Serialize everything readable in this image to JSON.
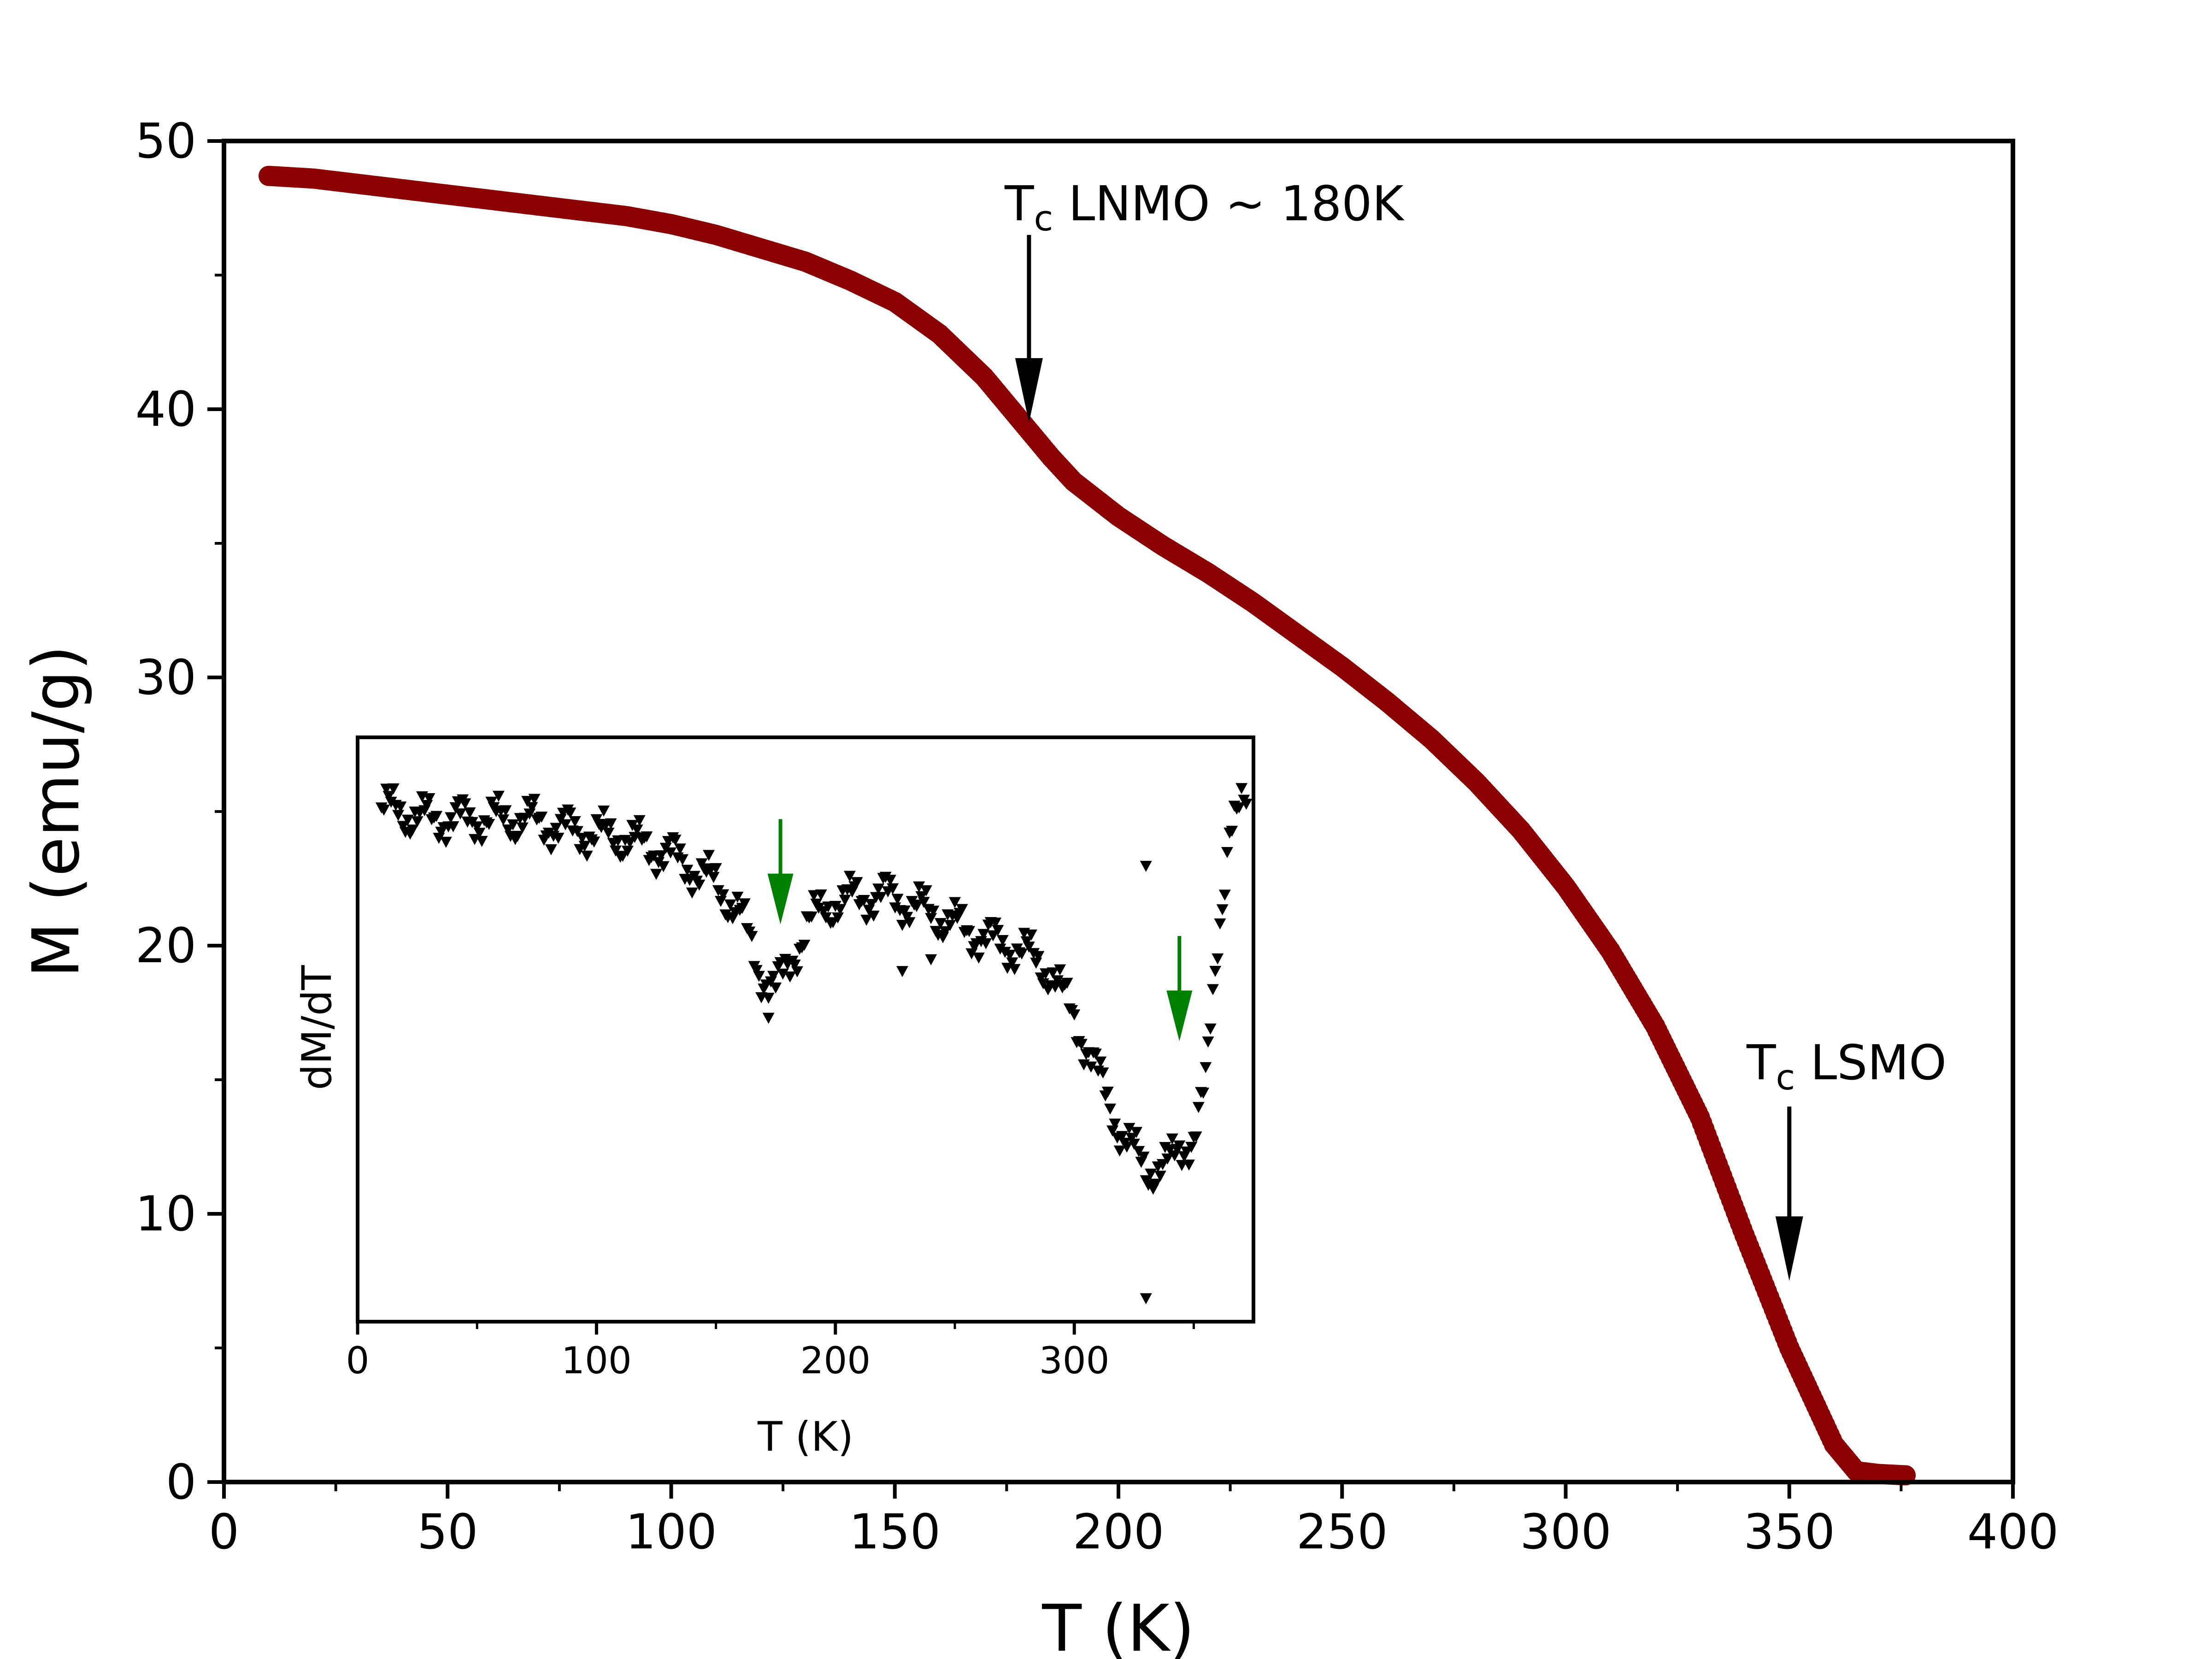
{
  "chart_data": {
    "main": {
      "type": "scatter",
      "xlabel": "T (K)",
      "ylabel": "M (emu/g)",
      "xlim": [
        0,
        400
      ],
      "ylim": [
        0,
        50
      ],
      "xticks": [
        "0",
        "50",
        "100",
        "150",
        "200",
        "250",
        "300",
        "350",
        "400"
      ],
      "yticks": [
        "0",
        "10",
        "20",
        "30",
        "40",
        "50"
      ],
      "marker_color": "#8b0000",
      "curve": [
        [
          10,
          48.7
        ],
        [
          20,
          48.6
        ],
        [
          30,
          48.4
        ],
        [
          40,
          48.2
        ],
        [
          50,
          48.0
        ],
        [
          60,
          47.8
        ],
        [
          70,
          47.6
        ],
        [
          80,
          47.4
        ],
        [
          90,
          47.2
        ],
        [
          100,
          46.9
        ],
        [
          110,
          46.5
        ],
        [
          120,
          46.0
        ],
        [
          130,
          45.5
        ],
        [
          140,
          44.8
        ],
        [
          150,
          44.0
        ],
        [
          160,
          42.8
        ],
        [
          170,
          41.2
        ],
        [
          175,
          40.2
        ],
        [
          180,
          39.2
        ],
        [
          185,
          38.2
        ],
        [
          190,
          37.3
        ],
        [
          200,
          36.0
        ],
        [
          210,
          34.9
        ],
        [
          220,
          33.9
        ],
        [
          230,
          32.8
        ],
        [
          240,
          31.6
        ],
        [
          250,
          30.4
        ],
        [
          260,
          29.1
        ],
        [
          270,
          27.7
        ],
        [
          280,
          26.1
        ],
        [
          290,
          24.3
        ],
        [
          300,
          22.2
        ],
        [
          310,
          19.8
        ],
        [
          320,
          17.0
        ],
        [
          330,
          13.6
        ],
        [
          340,
          9.2
        ],
        [
          350,
          5.0
        ],
        [
          355,
          3.2
        ],
        [
          360,
          1.4
        ],
        [
          365,
          0.4
        ],
        [
          370,
          0.3
        ],
        [
          376,
          0.25
        ]
      ],
      "annotations": [
        {
          "main": "T",
          "sub": "c",
          "rest": " LNMO ~ 180K",
          "arrow_x": 180,
          "arrow_y_from": 46.5,
          "arrow_y_to": 39.5
        },
        {
          "main": "T",
          "sub": "c",
          "rest": " LSMO",
          "arrow_x": 350,
          "arrow_y_from": 14.0,
          "arrow_y_to": 7.5
        }
      ]
    },
    "inset": {
      "type": "scatter",
      "xlabel": "T (K)",
      "ylabel": "dM/dT",
      "xlim": [
        0,
        375
      ],
      "ylim": [
        0,
        100
      ],
      "xticks": [
        "0",
        "100",
        "200",
        "300"
      ],
      "marker_color": "#000000",
      "arrow_color": "#008000",
      "curve": [
        [
          10,
          88
        ],
        [
          30,
          86
        ],
        [
          50,
          86
        ],
        [
          70,
          86
        ],
        [
          90,
          84
        ],
        [
          110,
          83
        ],
        [
          130,
          80
        ],
        [
          150,
          75
        ],
        [
          160,
          70
        ],
        [
          168,
          60
        ],
        [
          175,
          57
        ],
        [
          180,
          60
        ],
        [
          188,
          68
        ],
        [
          200,
          72
        ],
        [
          220,
          73
        ],
        [
          240,
          70
        ],
        [
          260,
          66
        ],
        [
          280,
          63
        ],
        [
          290,
          60
        ],
        [
          300,
          52
        ],
        [
          310,
          42
        ],
        [
          320,
          32
        ],
        [
          330,
          26
        ],
        [
          340,
          27
        ],
        [
          350,
          32
        ],
        [
          355,
          40
        ],
        [
          360,
          65
        ],
        [
          365,
          85
        ],
        [
          372,
          88
        ]
      ],
      "outliers": [
        [
          330,
          78
        ],
        [
          330,
          4
        ],
        [
          172,
          52
        ],
        [
          228,
          60
        ],
        [
          240,
          62
        ]
      ],
      "arrows": [
        {
          "x": 177,
          "y_from": 86,
          "y_to": 68
        },
        {
          "x": 344,
          "y_from": 66,
          "y_to": 48
        }
      ]
    }
  }
}
